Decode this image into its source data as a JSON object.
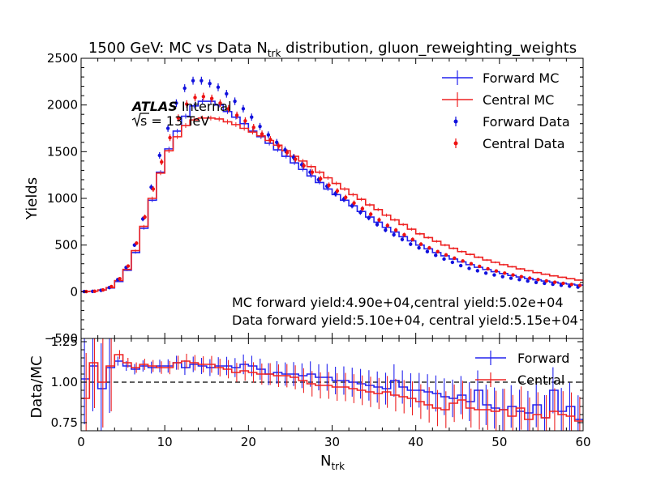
{
  "chart_data": [
    {
      "type": "line",
      "title": "1500 GeV: MC vs Data N",
      "title_sub": "trk",
      "title_suffix": " distribution, gluon_reweighting_weights",
      "ylabel": "Yields",
      "xlim": [
        0,
        60
      ],
      "ylim": [
        -500,
        2500
      ],
      "yticks": [
        "−500",
        "0",
        "500",
        "1000",
        "1500",
        "2000",
        "2500"
      ],
      "annotation": {
        "experiment": "ATLAS",
        "status": "Internal",
        "energy_prefix": "s",
        "energy_suffix": " = 13 TeV",
        "mc_text": "MC forward yield:4.90e+04,central yield:5.02e+04",
        "data_text": "Data forward yield:5.10e+04, central yield:5.15e+04"
      },
      "legend_position": "top-right",
      "x": [
        0.5,
        1.5,
        2.5,
        3.5,
        4.5,
        5.5,
        6.5,
        7.5,
        8.5,
        9.5,
        10.5,
        11.5,
        12.5,
        13.5,
        14.5,
        15.5,
        16.5,
        17.5,
        18.5,
        19.5,
        20.5,
        21.5,
        22.5,
        23.5,
        24.5,
        25.5,
        26.5,
        27.5,
        28.5,
        29.5,
        30.5,
        31.5,
        32.5,
        33.5,
        34.5,
        35.5,
        36.5,
        37.5,
        38.5,
        39.5,
        40.5,
        41.5,
        42.5,
        43.5,
        44.5,
        45.5,
        46.5,
        47.5,
        48.5,
        49.5,
        50.5,
        51.5,
        52.5,
        53.5,
        54.5,
        55.5,
        56.5,
        57.5,
        58.5,
        59.5
      ],
      "series": [
        {
          "name": "Forward MC",
          "color": "#2222ee",
          "style": "step",
          "values": [
            2,
            5,
            18,
            40,
            110,
            230,
            420,
            680,
            980,
            1280,
            1530,
            1720,
            1880,
            1990,
            2040,
            2040,
            2000,
            1930,
            1870,
            1800,
            1720,
            1660,
            1590,
            1520,
            1450,
            1380,
            1310,
            1240,
            1170,
            1100,
            1040,
            980,
            920,
            860,
            800,
            745,
            690,
            640,
            590,
            545,
            500,
            460,
            420,
            385,
            350,
            320,
            290,
            262,
            238,
            215,
            195,
            175,
            158,
            142,
            128,
            115,
            103,
            92,
            82,
            72
          ]
        },
        {
          "name": "Central MC",
          "color": "#ee2222",
          "style": "step",
          "values": [
            2,
            6,
            20,
            45,
            120,
            240,
            440,
            700,
            1000,
            1270,
            1510,
            1660,
            1780,
            1840,
            1860,
            1860,
            1850,
            1820,
            1790,
            1750,
            1710,
            1670,
            1620,
            1570,
            1510,
            1450,
            1400,
            1340,
            1280,
            1220,
            1160,
            1100,
            1040,
            990,
            930,
            880,
            820,
            770,
            720,
            670,
            620,
            580,
            540,
            500,
            465,
            430,
            400,
            370,
            340,
            315,
            290,
            268,
            245,
            225,
            205,
            188,
            170,
            155,
            140,
            125
          ]
        },
        {
          "name": "Forward Data",
          "color": "#1111dd",
          "style": "points",
          "values": [
            2,
            4,
            15,
            45,
            130,
            260,
            500,
            780,
            1120,
            1460,
            1750,
            2020,
            2180,
            2260,
            2260,
            2230,
            2190,
            2120,
            2040,
            1960,
            1870,
            1770,
            1680,
            1600,
            1520,
            1440,
            1360,
            1280,
            1200,
            1130,
            1050,
            990,
            920,
            850,
            790,
            720,
            660,
            610,
            560,
            510,
            470,
            430,
            390,
            350,
            315,
            280,
            250,
            225,
            200,
            180,
            162,
            145,
            130,
            115,
            100,
            90,
            80,
            70,
            60,
            50
          ]
        },
        {
          "name": "Central Data",
          "color": "#ee1111",
          "style": "points",
          "values": [
            2,
            5,
            20,
            55,
            140,
            275,
            520,
            800,
            1100,
            1390,
            1650,
            1860,
            2010,
            2080,
            2090,
            2070,
            2020,
            1960,
            1890,
            1830,
            1760,
            1690,
            1630,
            1560,
            1490,
            1420,
            1350,
            1280,
            1210,
            1140,
            1080,
            1010,
            950,
            890,
            830,
            770,
            710,
            660,
            610,
            560,
            510,
            470,
            430,
            395,
            360,
            330,
            300,
            272,
            246,
            222,
            200,
            180,
            162,
            146,
            130,
            116,
            102,
            90,
            78,
            68
          ]
        }
      ]
    },
    {
      "type": "line",
      "xlabel": "N",
      "xlabel_sub": "trk",
      "ylabel": "Data/MC",
      "xlim": [
        0,
        60
      ],
      "ylim": [
        0.7,
        1.27
      ],
      "xticks": [
        "0",
        "10",
        "20",
        "30",
        "40",
        "50",
        "60"
      ],
      "yticks": [
        "0.75",
        "1.00",
        "1.25"
      ],
      "reference_line": 1.0,
      "legend_position": "top-right",
      "x": [
        0.5,
        1.5,
        2.5,
        3.5,
        4.5,
        5.5,
        6.5,
        7.5,
        8.5,
        9.5,
        10.5,
        11.5,
        12.5,
        13.5,
        14.5,
        15.5,
        16.5,
        17.5,
        18.5,
        19.5,
        20.5,
        21.5,
        22.5,
        23.5,
        24.5,
        25.5,
        26.5,
        27.5,
        28.5,
        29.5,
        30.5,
        31.5,
        32.5,
        33.5,
        34.5,
        35.5,
        36.5,
        37.5,
        38.5,
        39.5,
        40.5,
        41.5,
        42.5,
        43.5,
        44.5,
        45.5,
        46.5,
        47.5,
        48.5,
        49.5,
        50.5,
        51.5,
        52.5,
        53.5,
        54.5,
        55.5,
        56.5,
        57.5,
        58.5,
        59.5
      ],
      "series": [
        {
          "name": "Forward",
          "color": "#2222ee",
          "style": "step",
          "values": [
            1.02,
            1.1,
            0.96,
            1.09,
            1.13,
            1.1,
            1.08,
            1.1,
            1.09,
            1.1,
            1.1,
            1.12,
            1.09,
            1.11,
            1.1,
            1.09,
            1.1,
            1.1,
            1.09,
            1.11,
            1.1,
            1.08,
            1.05,
            1.06,
            1.05,
            1.05,
            1.04,
            1.05,
            1.03,
            1.03,
            1.01,
            1.01,
            1.0,
            0.99,
            0.98,
            0.97,
            0.96,
            1.01,
            0.97,
            0.95,
            0.95,
            0.94,
            0.93,
            0.91,
            0.9,
            0.92,
            0.88,
            0.95,
            0.86,
            0.84,
            0.83,
            0.85,
            0.82,
            0.81,
            0.86,
            0.78,
            0.95,
            0.82,
            0.85,
            0.77
          ]
        },
        {
          "name": "Central",
          "color": "#ee2222",
          "style": "step",
          "values": [
            0.9,
            1.12,
            1.0,
            1.1,
            1.17,
            1.12,
            1.09,
            1.11,
            1.1,
            1.09,
            1.09,
            1.12,
            1.13,
            1.12,
            1.11,
            1.11,
            1.09,
            1.08,
            1.06,
            1.07,
            1.06,
            1.05,
            1.05,
            1.04,
            1.04,
            1.03,
            1.01,
            0.99,
            0.98,
            0.98,
            0.97,
            0.97,
            0.96,
            0.95,
            0.94,
            0.93,
            0.94,
            0.92,
            0.91,
            0.9,
            0.88,
            0.86,
            0.84,
            0.83,
            0.87,
            0.89,
            0.84,
            0.83,
            0.83,
            0.82,
            0.83,
            0.79,
            0.84,
            0.77,
            0.8,
            0.78,
            0.82,
            0.8,
            0.79,
            0.76
          ]
        }
      ]
    }
  ]
}
